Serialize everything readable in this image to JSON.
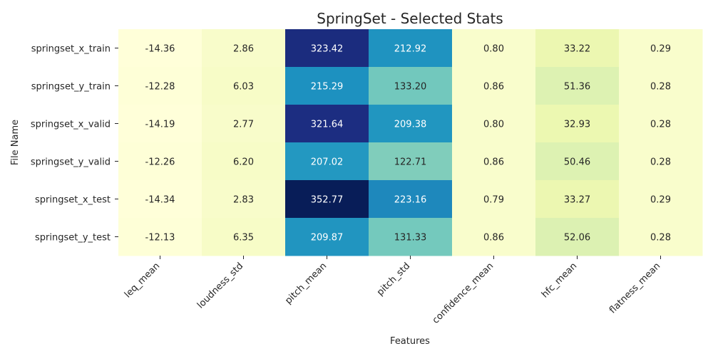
{
  "chart_data": {
    "type": "heatmap",
    "title": "SpringSet - Selected Stats",
    "xlabel": "Features",
    "ylabel": "File Name",
    "rows": [
      "springset_x_train",
      "springset_y_train",
      "springset_x_valid",
      "springset_y_valid",
      "springset_x_test",
      "springset_y_test"
    ],
    "columns": [
      "leq_mean",
      "loudness_std",
      "pitch_mean",
      "pitch_std",
      "confidence_mean",
      "hfc_mean",
      "flatness_mean"
    ],
    "values": [
      [
        -14.36,
        2.86,
        323.42,
        212.92,
        0.8,
        33.22,
        0.29
      ],
      [
        -12.28,
        6.03,
        215.29,
        133.2,
        0.86,
        51.36,
        0.28
      ],
      [
        -14.19,
        2.77,
        321.64,
        209.38,
        0.8,
        32.93,
        0.28
      ],
      [
        -12.26,
        6.2,
        207.02,
        122.71,
        0.86,
        50.46,
        0.28
      ],
      [
        -14.34,
        2.83,
        352.77,
        223.16,
        0.79,
        33.27,
        0.29
      ],
      [
        -12.13,
        6.35,
        209.87,
        131.33,
        0.86,
        52.06,
        0.28
      ]
    ],
    "colormap": "YlGnBu",
    "annotated": true,
    "value_format": "0.00",
    "colorbar": false
  }
}
